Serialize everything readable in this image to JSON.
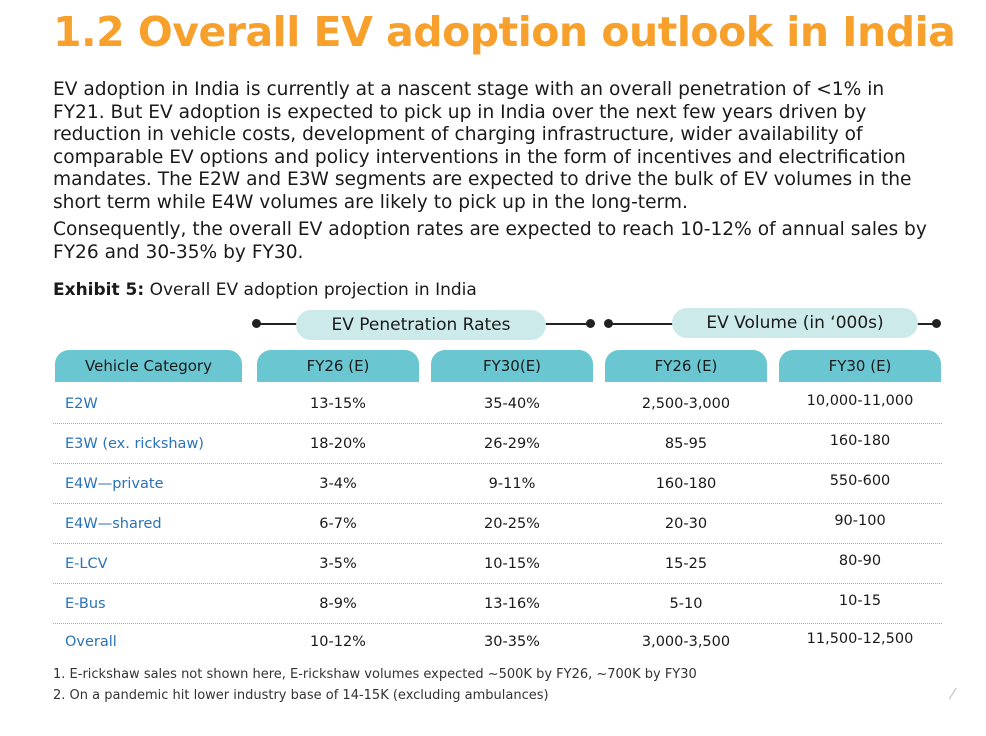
{
  "title": "1.2  Overall EV adoption outlook in India",
  "paragraphs": [
    "EV adoption in India is currently at a nascent stage with an overall penetration of <1% in FY21. But EV adoption is expected to pick up in India over the next few years driven by reduction in vehicle costs, development of charging infrastructure, wider availability of comparable EV options and policy interventions in the form of incentives and electrification mandates. The E2W and E3W segments are expected to drive the bulk of EV volumes in the short term while E4W volumes are likely to pick up in the long-term.",
    "Consequently, the overall EV adoption rates are expected to reach 10-12% of annual sales by FY26 and 30-35% by FY30."
  ],
  "exhibit": {
    "label": "Exhibit 5:",
    "caption": "Overall EV adoption projection in India"
  },
  "groups": {
    "penetration": "EV Penetration Rates",
    "volume": "EV Volume (in ‘000s)"
  },
  "columns": [
    "Vehicle Category",
    "FY26 (E)",
    "FY30(E)",
    "FY26 (E)",
    "FY30 (E)"
  ],
  "rows": [
    [
      "E2W",
      "13-15%",
      "35-40%",
      "2,500-3,000",
      "10,000-11,000"
    ],
    [
      "E3W (ex. rickshaw)",
      "18-20%",
      "26-29%",
      "85-95",
      "160-180"
    ],
    [
      "E4W—private",
      "3-4%",
      "9-11%",
      "160-180",
      "550-600"
    ],
    [
      "E4W—shared",
      "6-7%",
      "20-25%",
      "20-30",
      "90-100"
    ],
    [
      "E-LCV",
      "3-5%",
      "10-15%",
      "15-25",
      "80-90"
    ],
    [
      "E-Bus",
      "8-9%",
      "13-16%",
      "5-10",
      "10-15"
    ],
    [
      "Overall",
      "10-12%",
      "30-35%",
      "3,000-3,500",
      "11,500-12,500"
    ]
  ],
  "notes": [
    "1. E-rickshaw sales not shown here, E-rickshaw volumes expected ~500K by FY26, ~700K by FY30",
    "2. On a pandemic hit lower industry base of 14-15K (excluding ambulances)"
  ],
  "colors": {
    "accent": "#F7A02C",
    "header": "#6AC7D2",
    "pill": "#CDEAEB",
    "link": "#2A73B8"
  }
}
